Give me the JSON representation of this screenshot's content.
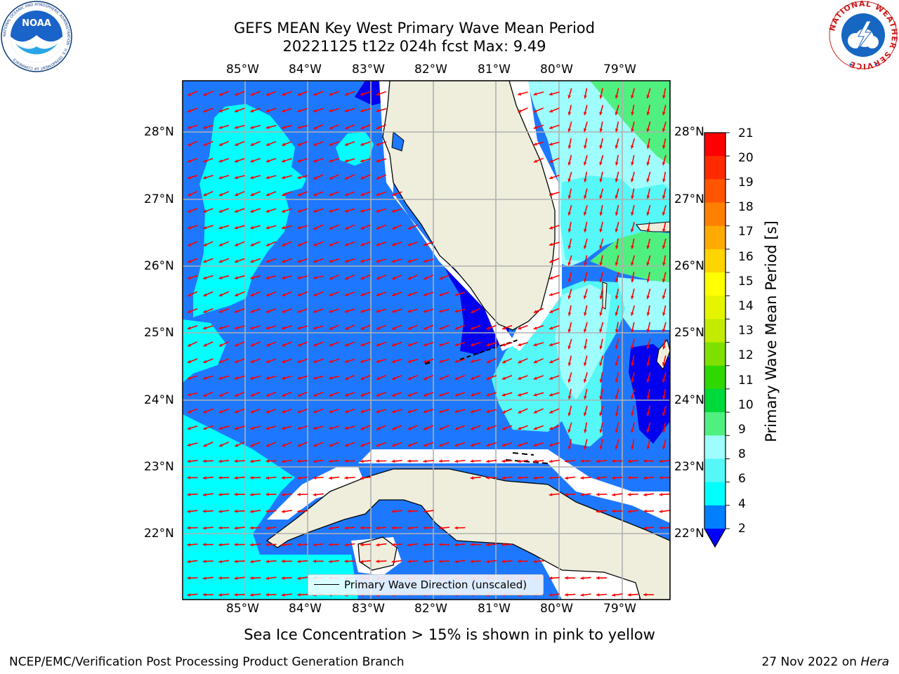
{
  "title": {
    "line1": "GEFS MEAN Key West Primary Wave Mean Period",
    "line2": "20221125 t12z 024h fcst   Max: 9.49"
  },
  "axes": {
    "lon_labels": [
      "85°W",
      "84°W",
      "83°W",
      "82°W",
      "81°W",
      "80°W",
      "79°W"
    ],
    "lat_labels": [
      "28°N",
      "27°N",
      "26°N",
      "25°N",
      "24°N",
      "23°N",
      "22°N"
    ]
  },
  "colorbar": {
    "label": "Primary Wave Mean Period [s]",
    "ticks": [
      "21",
      "20",
      "19",
      "18",
      "17",
      "16",
      "15",
      "14",
      "13",
      "12",
      "11",
      "10",
      "9",
      "8",
      "6",
      "4",
      "2"
    ],
    "colors": [
      "#ff0000",
      "#ff2a00",
      "#ff5500",
      "#ff8000",
      "#ffaa00",
      "#ffd400",
      "#ffff00",
      "#e5f500",
      "#c2eb00",
      "#7fe000",
      "#2ed800",
      "#00d93c",
      "#50f080",
      "#9ffdfd",
      "#55f7f7",
      "#00ffff",
      "#0080ff",
      "#0000ff"
    ]
  },
  "legend": {
    "label": "Primary Wave Direction (unscaled)"
  },
  "caption": "Sea Ice Concentration > 15% is shown in pink to yellow",
  "footer": {
    "left": "NCEP/EMC/Verification Post Processing Product Generation Branch",
    "right_prefix": "27 Nov 2022 on ",
    "right_host": "Hera"
  },
  "logos": {
    "noaa_text": "NOAA",
    "noaa_ring": "NATIONAL OCEANIC AND ATMOSPHERIC ADMINISTRATION · U.S. DEPARTMENT OF COMMERCE",
    "nws_ring": "NATIONAL WEATHER SERVICE"
  },
  "colors": {
    "land": "#efeedd",
    "ocean_2_4": "#1e78ff",
    "ocean_4_6": "#00ffff",
    "ocean_6_8": "#55f7f7",
    "ocean_8_9": "#9ffdfd",
    "ocean_9_10": "#50f080",
    "ocean_lt2": "#0000ee",
    "arrow": "#ff0000",
    "grid": "#b0b0b0"
  },
  "map_data": {
    "region": "Florida, Gulf of Mexico, Florida Straits, Cuba, Bahamas",
    "lon_range": [
      -86.0,
      -78.3
    ],
    "lat_range": [
      21.1,
      28.75
    ],
    "max_period_s": 9.49,
    "dominant_direction": "northeast to southwest"
  }
}
